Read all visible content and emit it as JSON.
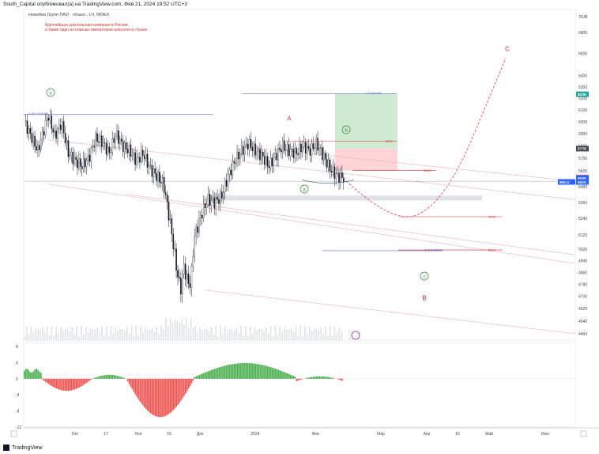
{
  "header": {
    "publisher": "South_Capital опубликовал(а) на TradingView.com, Фев 21, 2024 19:52 UTC+3"
  },
  "symbol": {
    "title": "Новабев Групп ПАО · обыкн., 1Ч, MOEX",
    "description_line1": "Крупнейшая алкогольная компания в России,",
    "description_line2": "а также один из главных импортеров алкоголя в стране"
  },
  "footer": {
    "brand": "TradingView"
  },
  "chart_data": {
    "type": "candlestick",
    "currency": "RUB",
    "ylim": [
      4420,
      7020
    ],
    "y_ticks": [
      4460,
      4540,
      4620,
      4700,
      4780,
      4860,
      4940,
      5020,
      5120,
      5240,
      5360,
      5480,
      5600,
      5700,
      5800,
      5900,
      6000,
      6100,
      6200,
      6300,
      6400,
      6600,
      6800
    ],
    "x_ticks": [
      "Окт",
      "17",
      "Ноя",
      "16",
      "Дек",
      "2024",
      "Фев",
      "Мар",
      "Апр",
      "16",
      "Май",
      "Июн"
    ],
    "price_path": [
      {
        "t": 0.0,
        "p": 6000
      },
      {
        "t": 0.02,
        "p": 5880
      },
      {
        "t": 0.04,
        "p": 5760
      },
      {
        "t": 0.06,
        "p": 5950
      },
      {
        "t": 0.07,
        "p": 6060
      },
      {
        "t": 0.09,
        "p": 5880
      },
      {
        "t": 0.11,
        "p": 5990
      },
      {
        "t": 0.13,
        "p": 5740
      },
      {
        "t": 0.15,
        "p": 5680
      },
      {
        "t": 0.17,
        "p": 5640
      },
      {
        "t": 0.19,
        "p": 5700
      },
      {
        "t": 0.21,
        "p": 5860
      },
      {
        "t": 0.23,
        "p": 5830
      },
      {
        "t": 0.25,
        "p": 5740
      },
      {
        "t": 0.27,
        "p": 5900
      },
      {
        "t": 0.29,
        "p": 5800
      },
      {
        "t": 0.31,
        "p": 5760
      },
      {
        "t": 0.33,
        "p": 5680
      },
      {
        "t": 0.35,
        "p": 5740
      },
      {
        "t": 0.37,
        "p": 5620
      },
      {
        "t": 0.39,
        "p": 5560
      },
      {
        "t": 0.41,
        "p": 5500
      },
      {
        "t": 0.43,
        "p": 5200
      },
      {
        "t": 0.45,
        "p": 4860
      },
      {
        "t": 0.46,
        "p": 4740
      },
      {
        "t": 0.47,
        "p": 4900
      },
      {
        "t": 0.48,
        "p": 4800
      },
      {
        "t": 0.49,
        "p": 4780
      },
      {
        "t": 0.5,
        "p": 5100
      },
      {
        "t": 0.52,
        "p": 5260
      },
      {
        "t": 0.54,
        "p": 5380
      },
      {
        "t": 0.56,
        "p": 5360
      },
      {
        "t": 0.58,
        "p": 5400
      },
      {
        "t": 0.6,
        "p": 5560
      },
      {
        "t": 0.62,
        "p": 5680
      },
      {
        "t": 0.64,
        "p": 5760
      },
      {
        "t": 0.66,
        "p": 5820
      },
      {
        "t": 0.68,
        "p": 5760
      },
      {
        "t": 0.7,
        "p": 5720
      },
      {
        "t": 0.72,
        "p": 5640
      },
      {
        "t": 0.74,
        "p": 5720
      },
      {
        "t": 0.76,
        "p": 5800
      },
      {
        "t": 0.78,
        "p": 5760
      },
      {
        "t": 0.8,
        "p": 5740
      },
      {
        "t": 0.82,
        "p": 5800
      },
      {
        "t": 0.84,
        "p": 5760
      },
      {
        "t": 0.86,
        "p": 5820
      },
      {
        "t": 0.88,
        "p": 5720
      },
      {
        "t": 0.9,
        "p": 5620
      },
      {
        "t": 0.92,
        "p": 5560
      },
      {
        "t": 0.94,
        "p": 5545
      }
    ],
    "price_labels": [
      {
        "label": "6235",
        "value": 6235,
        "color": "#26a69a"
      },
      {
        "label": "5778",
        "value": 5778,
        "color": "#434651"
      },
      {
        "label": "5548",
        "value": 5548,
        "color": "#f23645"
      },
      {
        "label": "5545",
        "value": 5545,
        "color": "#2962ff"
      },
      {
        "label": "5515",
        "value": 5515,
        "color": "#2962ff"
      }
    ],
    "ticker_badge": "BELU",
    "levels": [
      {
        "label": "0.854 (6064)",
        "value": 6064
      },
      {
        "label": "1.13 (6240)",
        "value": 6240
      },
      {
        "label": "5837",
        "value": 5837
      },
      {
        "label": "5604",
        "value": 5604
      },
      {
        "label": "5253",
        "value": 5253
      },
      {
        "label": "0.618 (5009)",
        "value": 5009
      },
      {
        "label": "5014",
        "value": 5014
      }
    ],
    "wave_labels": [
      "v",
      "A",
      "b",
      "a",
      "C",
      "B",
      "c"
    ],
    "oscillator": {
      "ylim": [
        -12,
        9
      ],
      "ticks": [
        8,
        4,
        0,
        -4,
        -8,
        -12
      ],
      "positive_color": "#4caf50",
      "negative_color": "#ef5350"
    },
    "colors": {
      "up": "#26a69a",
      "down": "#131722",
      "target_zone": "#c8e6c9",
      "stop_zone": "#ffcdd2",
      "projection": "#f23645"
    }
  }
}
